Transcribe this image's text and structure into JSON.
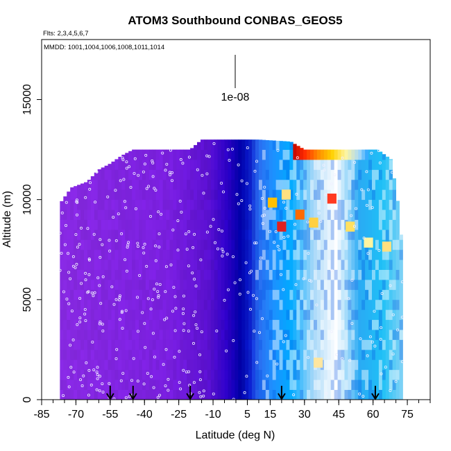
{
  "chart_data": {
    "type": "heatmap",
    "title": "ATOM3 Southbound CONBAS_GEOS5",
    "flights_note": "Flts: 2,3,4,5,6,7",
    "dates_note": "MMDD: 1001,1004,1006,1008,1011,1014",
    "xlabel": "Latitude (deg N)",
    "ylabel": "Altitude (m)",
    "xlim": [
      -85,
      85
    ],
    "ylim": [
      0,
      18000
    ],
    "x_ticks": [
      -85,
      -70,
      -55,
      -40,
      -25,
      -10,
      5,
      15,
      30,
      45,
      60,
      75
    ],
    "y_ticks": [
      0,
      5000,
      10000,
      15000
    ],
    "scale_bar_label": "1e-08",
    "arrow_latitudes": [
      -55,
      -45,
      -20,
      20,
      61
    ],
    "grid": false,
    "legend": "none",
    "coverage": [
      {
        "lat": -77,
        "alt_top": 9800
      },
      {
        "lat": -72,
        "alt_top": 10600
      },
      {
        "lat": -65,
        "alt_top": 10900
      },
      {
        "lat": -60,
        "alt_top": 11500
      },
      {
        "lat": -55,
        "alt_top": 11800
      },
      {
        "lat": -50,
        "alt_top": 12200
      },
      {
        "lat": -45,
        "alt_top": 12500
      },
      {
        "lat": -35,
        "alt_top": 12500
      },
      {
        "lat": -20,
        "alt_top": 12500
      },
      {
        "lat": -15,
        "alt_top": 13000
      },
      {
        "lat": 10,
        "alt_top": 13000
      },
      {
        "lat": 24,
        "alt_top": 12900
      },
      {
        "lat": 30,
        "alt_top": 12500
      },
      {
        "lat": 62,
        "alt_top": 12500
      },
      {
        "lat": 68,
        "alt_top": 12000
      },
      {
        "lat": 72,
        "alt_top": 9000
      },
      {
        "lat": 73,
        "alt_top": 6000
      }
    ],
    "latitude_color_profile": [
      {
        "lat": -85,
        "color": "#8a2be2"
      },
      {
        "lat": -30,
        "color": "#7a1fe0"
      },
      {
        "lat": -12,
        "color": "#5a10d0"
      },
      {
        "lat": -4,
        "color": "#2d00c8"
      },
      {
        "lat": 2,
        "color": "#0000a8"
      },
      {
        "lat": 6,
        "color": "#0a1ccc"
      },
      {
        "lat": 10,
        "color": "#2a6cf0"
      },
      {
        "lat": 16,
        "color": "#1e90ff"
      },
      {
        "lat": 24,
        "color": "#00aaff"
      },
      {
        "lat": 34,
        "color": "#a8d8f8"
      },
      {
        "lat": 44,
        "color": "#ffffff"
      },
      {
        "lat": 54,
        "color": "#2aaaf4"
      },
      {
        "lat": 64,
        "color": "#1ec0f6"
      },
      {
        "lat": 75,
        "color": "#9ad6f6"
      }
    ],
    "upper_band": {
      "lat_range": [
        24,
        58
      ],
      "alt_range": [
        11700,
        12500
      ],
      "stops": [
        {
          "lat": 24,
          "color": "#b40000"
        },
        {
          "lat": 30,
          "color": "#ff2a00"
        },
        {
          "lat": 36,
          "color": "#ff8c00"
        },
        {
          "lat": 42,
          "color": "#ffd000"
        },
        {
          "lat": 48,
          "color": "#fff5a0"
        },
        {
          "lat": 54,
          "color": "#a8d8f8"
        },
        {
          "lat": 58,
          "color": "#1ea0ff"
        }
      ]
    },
    "hotspots": [
      {
        "lat": 16,
        "alt": 9600,
        "color": "#ffc000"
      },
      {
        "lat": 20,
        "alt": 8400,
        "color": "#e02020"
      },
      {
        "lat": 22,
        "alt": 10000,
        "color": "#ffe080"
      },
      {
        "lat": 28,
        "alt": 9000,
        "color": "#ff6a00"
      },
      {
        "lat": 34,
        "alt": 8600,
        "color": "#ffd040"
      },
      {
        "lat": 42,
        "alt": 9800,
        "color": "#ff3a20"
      },
      {
        "lat": 50,
        "alt": 8400,
        "color": "#ffe060"
      },
      {
        "lat": 58,
        "alt": 7600,
        "color": "#fff5a0"
      },
      {
        "lat": 66,
        "alt": 7400,
        "color": "#ffe080"
      },
      {
        "lat": 36,
        "alt": 1600,
        "color": "#ffe6a0"
      }
    ]
  }
}
